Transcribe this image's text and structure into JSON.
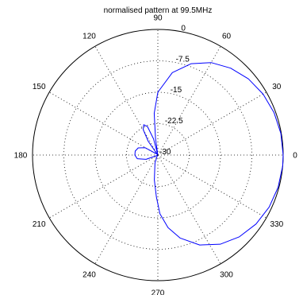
{
  "chart_data": {
    "type": "polar-line",
    "title": "normalised pattern at 99.5MHz",
    "angle_ticks": [
      {
        "angle": 0,
        "label": "0"
      },
      {
        "angle": 30,
        "label": "30"
      },
      {
        "angle": 60,
        "label": "60"
      },
      {
        "angle": 90,
        "label": "90"
      },
      {
        "angle": 120,
        "label": "120"
      },
      {
        "angle": 150,
        "label": "150"
      },
      {
        "angle": 180,
        "label": "180"
      },
      {
        "angle": 210,
        "label": "210"
      },
      {
        "angle": 240,
        "label": "240"
      },
      {
        "angle": 270,
        "label": "270"
      },
      {
        "angle": 300,
        "label": "300"
      },
      {
        "angle": 330,
        "label": "330"
      }
    ],
    "radial_ticks": [
      {
        "value": -30,
        "label": "-30"
      },
      {
        "value": -22.5,
        "label": "-22.5"
      },
      {
        "value": -15,
        "label": "-15"
      },
      {
        "value": -7.5,
        "label": "-7.5"
      },
      {
        "value": 0,
        "label": "0"
      }
    ],
    "rlim": [
      -30,
      0
    ],
    "grid": true,
    "colors": {
      "series": "#0000ff",
      "grid": "#000000"
    },
    "series": [
      {
        "points": [
          {
            "theta": 0,
            "r": 0
          },
          {
            "theta": 10,
            "r": -0.1
          },
          {
            "theta": 20,
            "r": -0.4
          },
          {
            "theta": 30,
            "r": -0.9
          },
          {
            "theta": 40,
            "r": -1.7
          },
          {
            "theta": 50,
            "r": -2.9
          },
          {
            "theta": 60,
            "r": -4.5
          },
          {
            "theta": 70,
            "r": -6.8
          },
          {
            "theta": 80,
            "r": -10.0
          },
          {
            "theta": 90,
            "r": -15.0
          },
          {
            "theta": 95,
            "r": -20.0
          },
          {
            "theta": 98,
            "r": -26.0
          },
          {
            "theta": 100,
            "r": -29.8
          },
          {
            "theta": 105,
            "r": -26.0
          },
          {
            "theta": 110,
            "r": -22.8
          },
          {
            "theta": 115,
            "r": -22.0
          },
          {
            "theta": 120,
            "r": -23.0
          },
          {
            "theta": 125,
            "r": -26.0
          },
          {
            "theta": 130,
            "r": -29.8
          },
          {
            "theta": 140,
            "r": -29.5
          },
          {
            "theta": 150,
            "r": -26.5
          },
          {
            "theta": 160,
            "r": -25.0
          },
          {
            "theta": 170,
            "r": -24.5
          },
          {
            "theta": 180,
            "r": -24.5
          },
          {
            "theta": 190,
            "r": -25.0
          },
          {
            "theta": 200,
            "r": -27.0
          },
          {
            "theta": 210,
            "r": -29.8
          },
          {
            "theta": 230,
            "r": -29.8
          },
          {
            "theta": 250,
            "r": -28.0
          },
          {
            "theta": 262,
            "r": -24.0
          },
          {
            "theta": 268,
            "r": -20.0
          },
          {
            "theta": 272,
            "r": -16.0
          },
          {
            "theta": 278,
            "r": -12.5
          },
          {
            "theta": 285,
            "r": -9.5
          },
          {
            "theta": 295,
            "r": -6.3
          },
          {
            "theta": 305,
            "r": -4.0
          },
          {
            "theta": 315,
            "r": -2.4
          },
          {
            "theta": 325,
            "r": -1.3
          },
          {
            "theta": 335,
            "r": -0.6
          },
          {
            "theta": 345,
            "r": -0.2
          },
          {
            "theta": 355,
            "r": 0
          },
          {
            "theta": 360,
            "r": 0
          }
        ]
      }
    ]
  }
}
